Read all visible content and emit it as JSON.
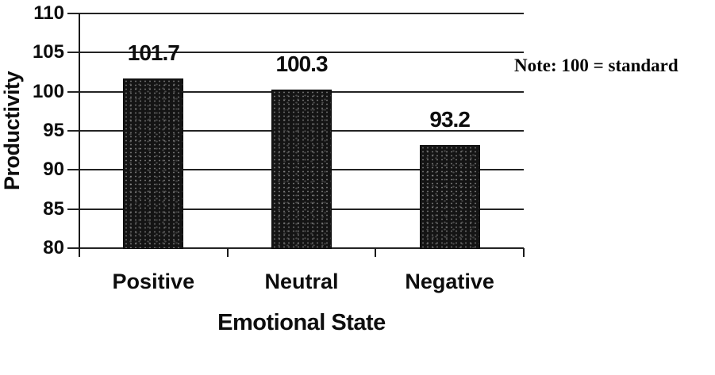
{
  "chart_data": {
    "type": "bar",
    "title": "",
    "categories": [
      "Positive",
      "Neutral",
      "Negative"
    ],
    "values": [
      101.7,
      100.3,
      93.2
    ],
    "value_labels": [
      "101.7",
      "100.3",
      "93.2"
    ],
    "xlabel": "Emotional State",
    "ylabel": "Productivity",
    "ylim": [
      80,
      110
    ],
    "yticks": [
      110,
      105,
      100,
      95,
      90,
      85,
      80
    ],
    "grid": true,
    "legend": "none",
    "annotation": "Note: 100 = standard",
    "bar_color": "#141414",
    "line_color": "#1a1a1a",
    "background_color": "#ffffff"
  }
}
